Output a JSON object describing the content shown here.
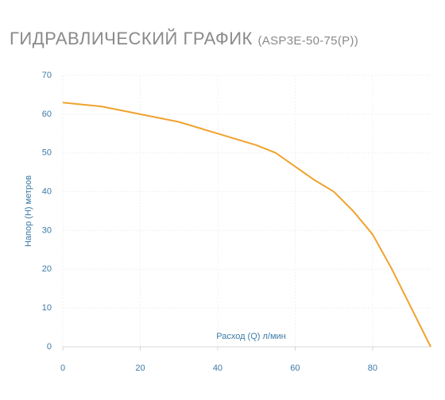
{
  "chart_data": {
    "type": "line",
    "title": "ГИДРАВЛИЧЕСКИЙ ГРАФИК",
    "subtitle": "(ASP3E-50-75(P))",
    "x_label": "Расход (Q) л/мин",
    "y_label": "Напор (H) метров",
    "x": [
      0,
      10,
      20,
      30,
      40,
      50,
      55,
      60,
      65,
      70,
      75,
      80,
      85,
      90,
      95
    ],
    "series": [
      {
        "name": "ASP3E-50-75(P)",
        "color": "#f0a22e",
        "values": [
          63,
          62,
          60,
          58,
          55,
          52,
          50,
          46.5,
          43,
          40,
          35,
          29,
          20,
          10,
          0
        ]
      }
    ],
    "xlim": [
      0,
      95
    ],
    "ylim": [
      0,
      70
    ],
    "xticks": [
      0,
      20,
      40,
      60,
      80
    ],
    "yticks": [
      0,
      10,
      20,
      30,
      40,
      50,
      60,
      70
    ],
    "grid": true
  }
}
